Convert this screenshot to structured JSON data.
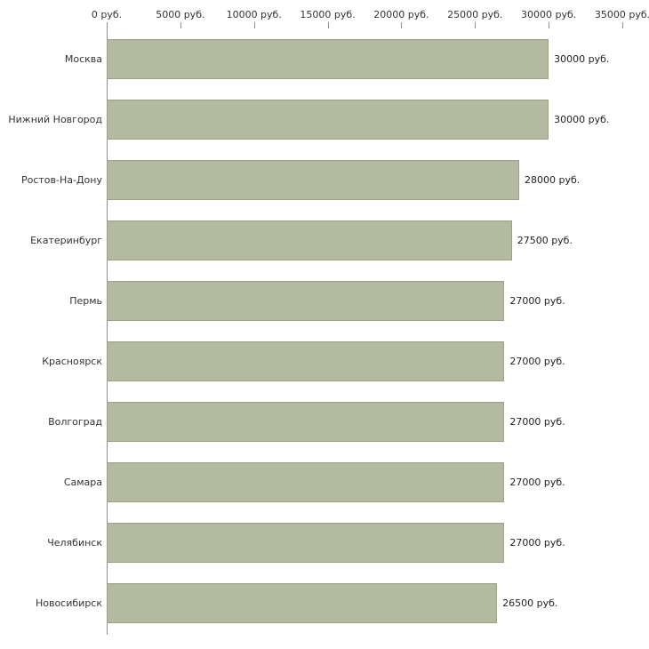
{
  "chart_data": {
    "type": "bar",
    "orientation": "horizontal",
    "title": "",
    "xlabel": "",
    "ylabel": "",
    "grid": false,
    "legend": false,
    "xlim": [
      0,
      35000
    ],
    "x_ticks": [
      0,
      5000,
      10000,
      15000,
      20000,
      25000,
      30000,
      35000
    ],
    "x_tick_labels": [
      "0 руб.",
      "5000 руб.",
      "10000 руб.",
      "15000 руб.",
      "20000 руб.",
      "25000 руб.",
      "30000 руб.",
      "35000 руб."
    ],
    "categories": [
      "Москва",
      "Нижний Новгород",
      "Ростов-На-Дону",
      "Екатеринбург",
      "Пермь",
      "Красноярск",
      "Волгоград",
      "Самара",
      "Челябинск",
      "Новосибирск"
    ],
    "values": [
      30000,
      30000,
      28000,
      27500,
      27000,
      27000,
      27000,
      27000,
      27000,
      26500
    ],
    "value_labels": [
      "30000 руб.",
      "30000 руб.",
      "28000 руб.",
      "27500 руб.",
      "27000 руб.",
      "27000 руб.",
      "27000 руб.",
      "27000 руб.",
      "27000 руб.",
      "26500 руб."
    ],
    "bar_color": "#b4baa1",
    "bar_border_color": "#9aa185",
    "axis_color": "#8c8c8c"
  }
}
